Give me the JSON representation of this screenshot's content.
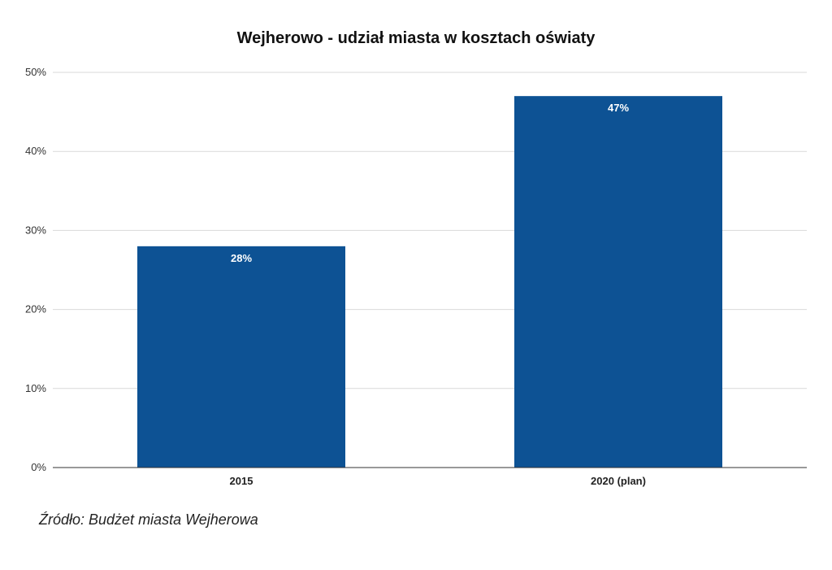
{
  "chart_data": {
    "type": "bar",
    "title": "Wejherowo - udział miasta w kosztach oświaty",
    "categories": [
      "2015",
      "2020 (plan)"
    ],
    "values": [
      28,
      47
    ],
    "data_labels": [
      "28%",
      "47%"
    ],
    "y_ticks": [
      "0%",
      "10%",
      "20%",
      "30%",
      "40%",
      "50%"
    ],
    "ylim": [
      0,
      50
    ],
    "xlabel": "",
    "ylabel": "",
    "grid": true,
    "legend": "none",
    "bar_color": "#0d5294",
    "grid_color": "#d9d9d9",
    "axis_color": "#333333",
    "label_color": "#ffffff"
  },
  "source": "Źródło: Budżet miasta Wejherowa"
}
